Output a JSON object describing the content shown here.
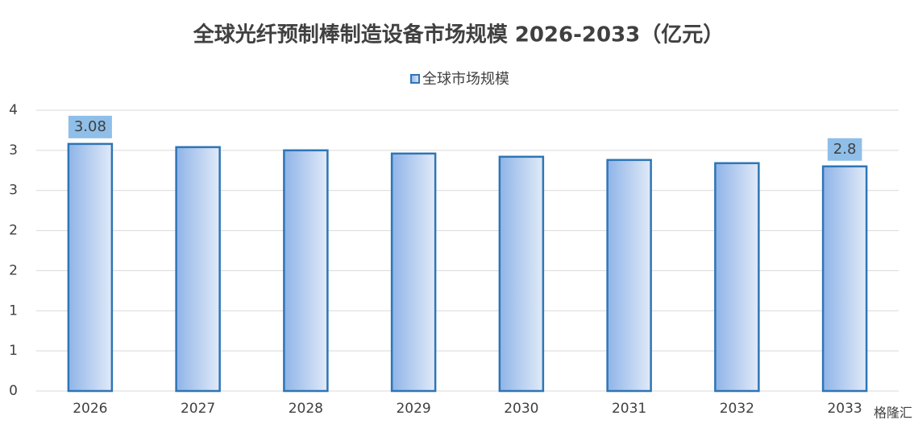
{
  "chart_data": {
    "type": "bar",
    "title": "全球光纤预制棒制造设备市场规模 2026-2033（亿元）",
    "categories": [
      "2026",
      "2027",
      "2028",
      "2029",
      "2030",
      "2031",
      "2032",
      "2033"
    ],
    "series": [
      {
        "name": "全球市场规模",
        "color": "#2e75b6",
        "values": [
          3.08,
          3.04,
          3.0,
          2.96,
          2.92,
          2.88,
          2.84,
          2.8
        ],
        "value_labels": [
          "3.08",
          null,
          null,
          null,
          null,
          null,
          null,
          "2.8"
        ]
      }
    ],
    "ylim": [
      0,
      3.5
    ],
    "yticks": [
      0,
      {
        "value": 0.5,
        "label": "1"
      },
      1,
      {
        "value": 1.5,
        "label": "2"
      },
      2,
      {
        "value": 2.5,
        "label": "3"
      },
      3,
      {
        "value": 3.5,
        "label": "4"
      }
    ],
    "grid": true,
    "legend": "top",
    "watermark": "格隆汇"
  }
}
